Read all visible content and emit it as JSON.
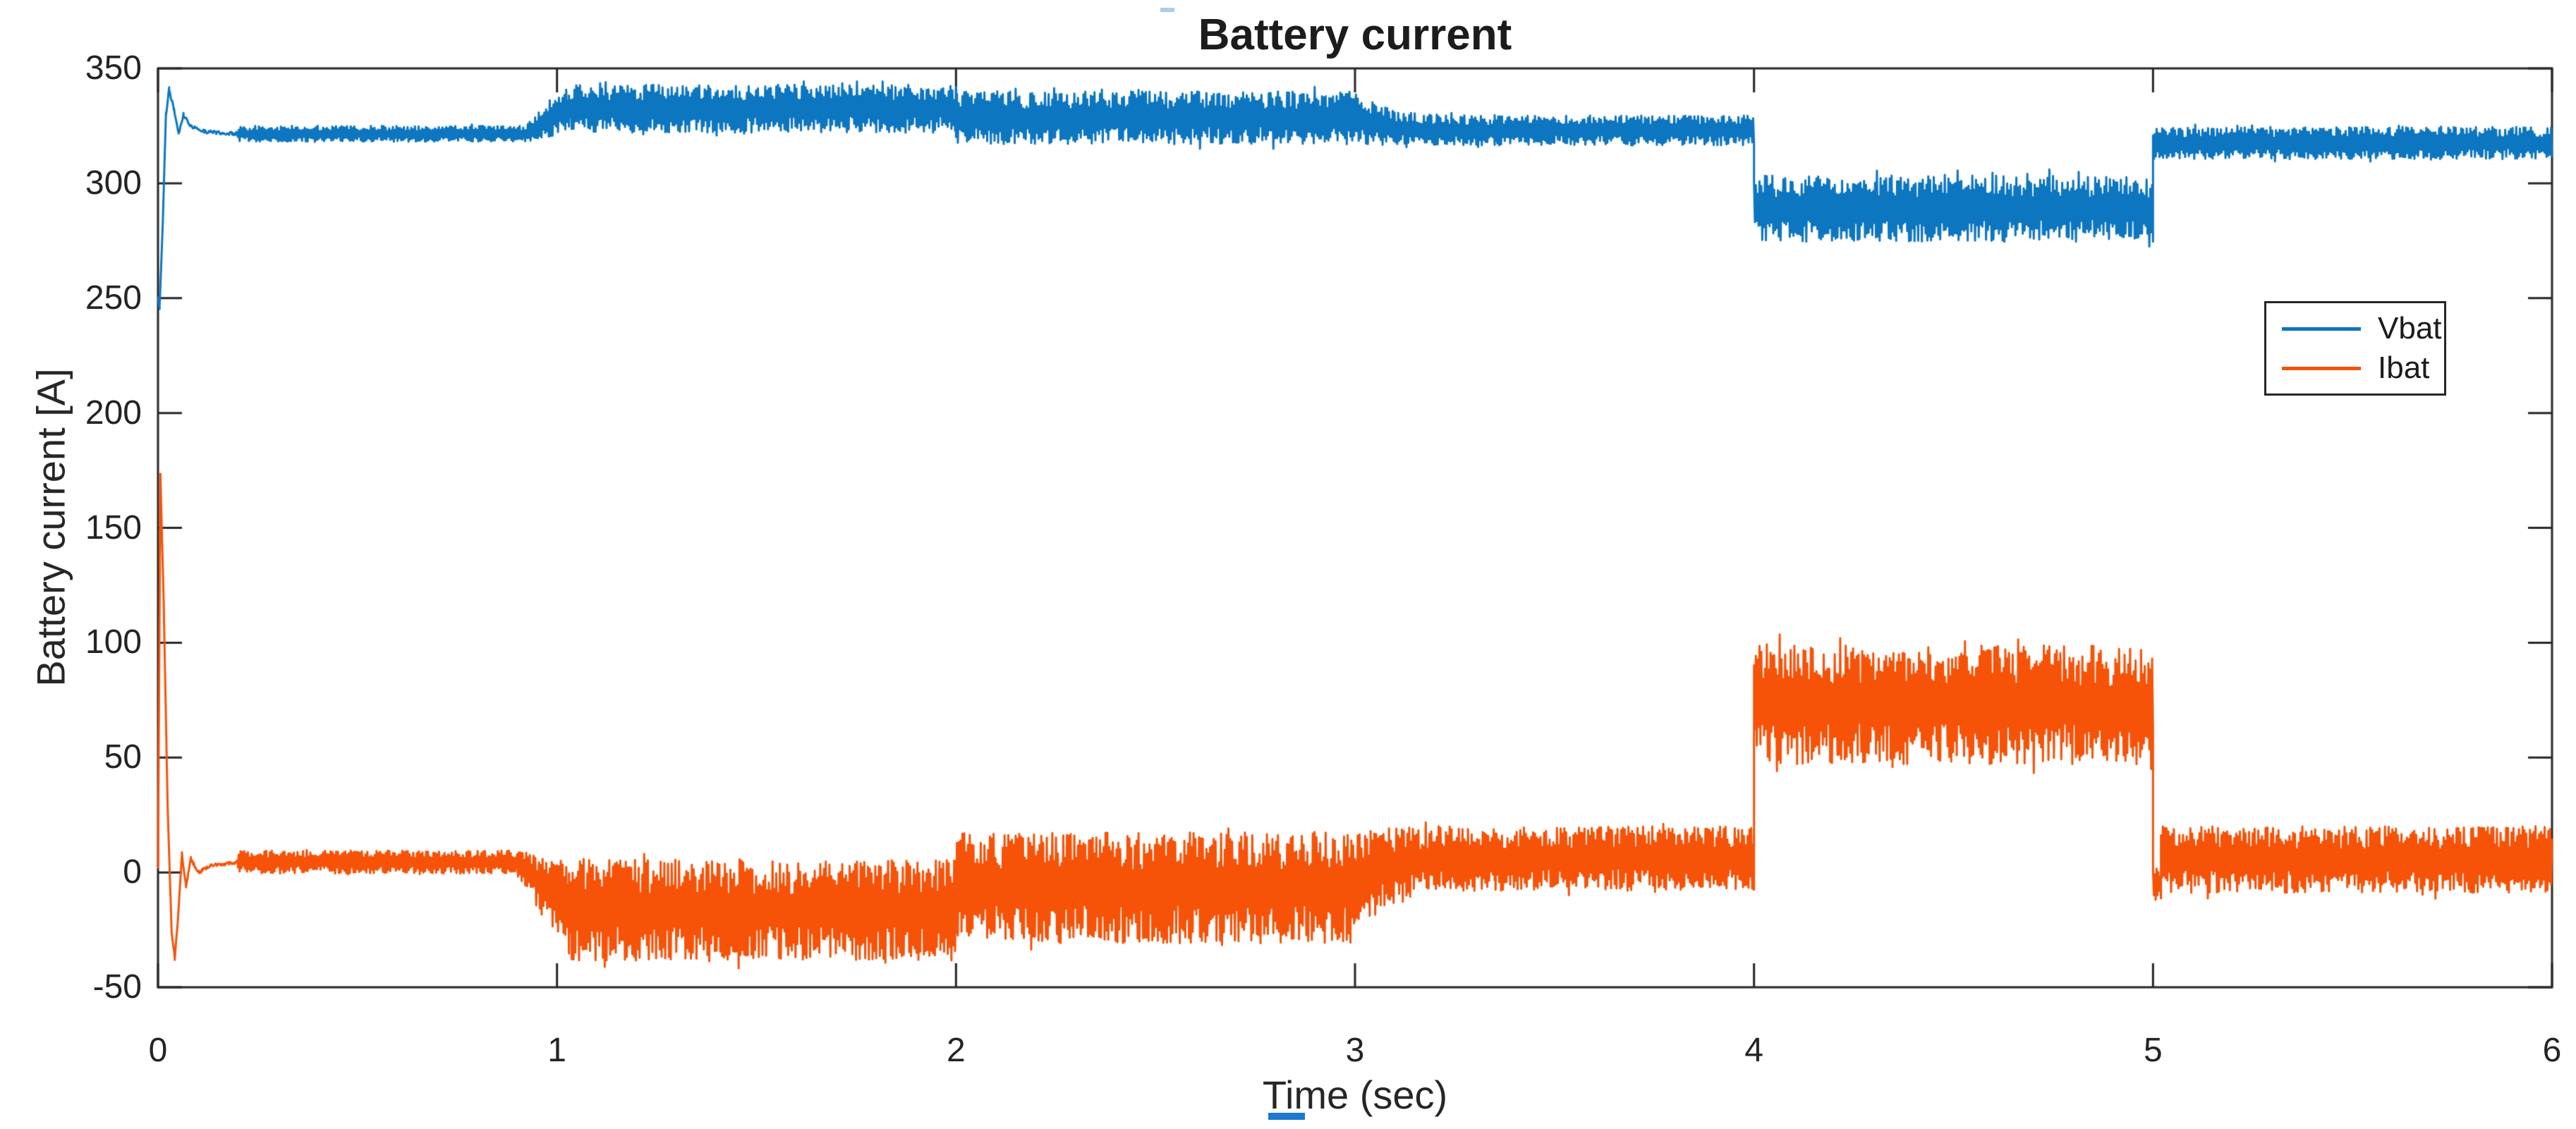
{
  "figure": {
    "background": "#ffffff",
    "axis_color": "#262626",
    "text_color": "#242424"
  },
  "chart_data": {
    "type": "line",
    "title": "Battery current",
    "xlabel": "Time (sec)",
    "ylabel": "Battery current [A]",
    "xlim": [
      0,
      6
    ],
    "ylim": [
      -50,
      350
    ],
    "xticks": [
      0,
      1,
      2,
      3,
      4,
      5,
      6
    ],
    "xtick_labels": [
      "0",
      "1",
      "2",
      "3",
      "4",
      "5",
      "6"
    ],
    "yticks": [
      350,
      300,
      250,
      200,
      150,
      100,
      50,
      0,
      -50
    ],
    "ytick_labels": [
      "350",
      "300",
      "250",
      "200",
      "150",
      "100",
      "50",
      "0",
      "-50"
    ],
    "grid": false,
    "legend": {
      "position": "upper-right-inside",
      "entries": [
        "Vbat",
        "Ibat"
      ]
    },
    "series": [
      {
        "name": "Vbat",
        "color": "#0d76c1",
        "description": "Battery voltage trace: startup dip/overshoot then stepped noisy bands",
        "transient_keys": [
          [
            0,
            250
          ],
          [
            0.004,
            246
          ],
          [
            0.012,
            283
          ],
          [
            0.02,
            330
          ],
          [
            0.028,
            341
          ],
          [
            0.04,
            332
          ],
          [
            0.052,
            322
          ],
          [
            0.064,
            330
          ],
          [
            0.08,
            325
          ],
          [
            0.12,
            322.5
          ],
          [
            0.2,
            321.5
          ]
        ],
        "bands": [
          {
            "t": [
              0.2,
              0.92
            ],
            "mean": [
              321.5,
              321.5
            ],
            "amp": [
              3.5,
              3.5
            ]
          },
          {
            "t": [
              0.92,
              1.03
            ],
            "mean": [
              321.5,
              332.5
            ],
            "amp": [
              4,
              10
            ]
          },
          {
            "t": [
              1.03,
              2.0
            ],
            "mean": [
              332.5,
              332.5
            ],
            "amp": [
              10.5,
              10.5
            ]
          },
          {
            "t": [
              2.0,
              3.0
            ],
            "mean": [
              328.5,
              328.5
            ],
            "amp": [
              11.5,
              11.5
            ]
          },
          {
            "t": [
              3.0,
              3.35
            ],
            "mean": [
              328.5,
              323.0
            ],
            "amp": [
              11.5,
              6.5
            ],
            "ease": "decay"
          },
          {
            "t": [
              3.35,
              4.0
            ],
            "mean": [
              323.0,
              323.0
            ],
            "amp": [
              6.5,
              6.5
            ]
          },
          {
            "t": [
              4.0,
              5.0
            ],
            "mean": [
              289.0,
              289.0
            ],
            "amp": [
              14.5,
              14.5
            ]
          },
          {
            "t": [
              5.0,
              6.0
            ],
            "mean": [
              317.5,
              317.5
            ],
            "amp": [
              7.0,
              7.0
            ]
          }
        ]
      },
      {
        "name": "Ibat",
        "color": "#f65309",
        "description": "Battery current trace: startup spike to ~173 A, dip to ~-38 A, stepped noisy bands",
        "transient_keys": [
          [
            0,
            2
          ],
          [
            0.006,
            173
          ],
          [
            0.014,
            120
          ],
          [
            0.024,
            30
          ],
          [
            0.034,
            -25
          ],
          [
            0.042,
            -38
          ],
          [
            0.052,
            -15
          ],
          [
            0.06,
            8
          ],
          [
            0.07,
            -6
          ],
          [
            0.082,
            6
          ],
          [
            0.1,
            0
          ],
          [
            0.13,
            3
          ],
          [
            0.2,
            4.5
          ]
        ],
        "bands": [
          {
            "t": [
              0.2,
              0.9
            ],
            "mean": [
              4.5,
              4.5
            ],
            "amp": [
              5,
              5
            ]
          },
          {
            "t": [
              0.9,
              1.03
            ],
            "mean": [
              4.5,
              -16.5
            ],
            "amp": [
              6,
              21
            ]
          },
          {
            "t": [
              1.03,
              2.0
            ],
            "mean": [
              -16.5,
              -16.5
            ],
            "amp": [
              22,
              22
            ]
          },
          {
            "t": [
              2.0,
              3.0
            ],
            "mean": [
              -6.5,
              -6.5
            ],
            "amp": [
              24.5,
              24.5
            ]
          },
          {
            "t": [
              3.0,
              3.35
            ],
            "mean": [
              -6.5,
              6.0
            ],
            "amp": [
              24.5,
              14
            ],
            "ease": "decay"
          },
          {
            "t": [
              3.35,
              4.0
            ],
            "mean": [
              6.0,
              6.0
            ],
            "amp": [
              14,
              14
            ]
          },
          {
            "t": [
              4.0,
              5.0
            ],
            "mean": [
              73.0,
              73.0
            ],
            "amp": [
              26,
              26
            ]
          },
          {
            "t": [
              5.0,
              5.02
            ],
            "mean": [
              -5.0,
              -5.0
            ],
            "amp": [
              7,
              7
            ]
          },
          {
            "t": [
              5.02,
              6.0
            ],
            "mean": [
              5.5,
              5.5
            ],
            "amp": [
              14.5,
              14.5
            ]
          }
        ]
      }
    ]
  }
}
